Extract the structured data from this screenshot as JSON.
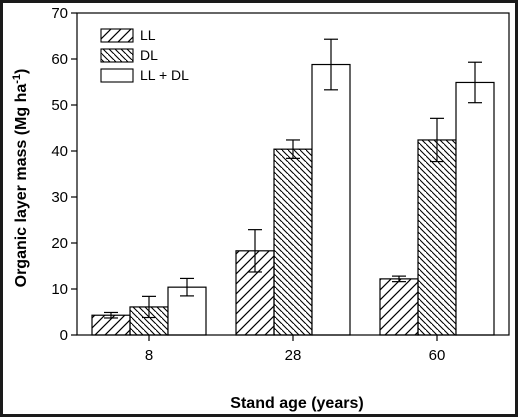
{
  "chart_data": {
    "type": "bar",
    "xlabel": "Stand age (years)",
    "ylabel": "Organic layer mass (Mg ha",
    "ylabel_sup": "-1",
    "ylabel_close": ")",
    "ylim": [
      0,
      70
    ],
    "yticks": [
      0,
      10,
      20,
      30,
      40,
      50,
      60,
      70
    ],
    "categories": [
      "8",
      "28",
      "60"
    ],
    "legend_position": "top-left",
    "series": [
      {
        "name": "LL",
        "pattern": "diag-right",
        "values": [
          4.3,
          18.3,
          12.2
        ],
        "errors": [
          0.6,
          4.6,
          0.6
        ]
      },
      {
        "name": "DL",
        "pattern": "diag-left",
        "values": [
          6.1,
          40.4,
          42.4
        ],
        "errors": [
          2.3,
          2.0,
          4.7
        ]
      },
      {
        "name": "LL + DL",
        "pattern": "none",
        "values": [
          10.4,
          58.8,
          54.9
        ],
        "errors": [
          1.9,
          5.5,
          4.4
        ]
      }
    ]
  }
}
